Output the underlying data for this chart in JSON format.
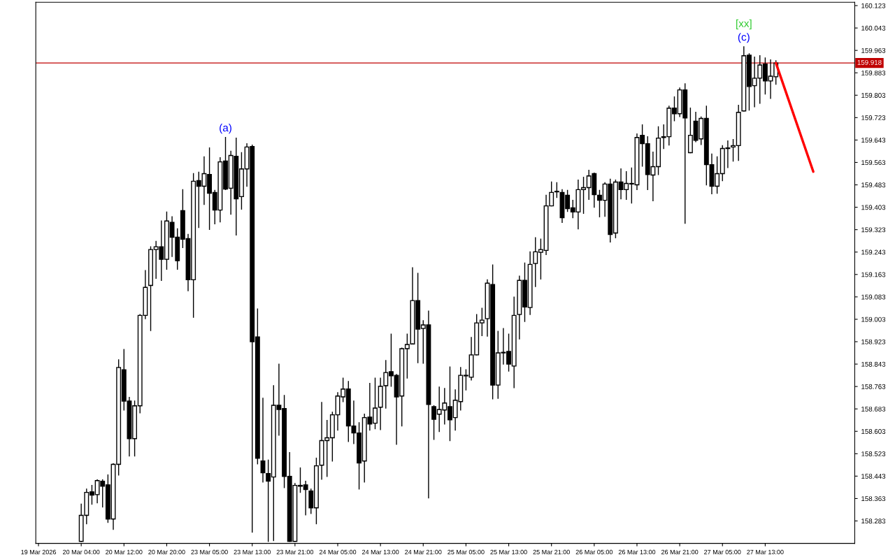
{
  "chart_data": {
    "type": "candlestick",
    "categories": [
      "19 Mar 2026",
      null,
      null,
      null,
      null,
      null,
      null,
      null,
      "20 Mar 04:00",
      null,
      null,
      null,
      null,
      null,
      null,
      null,
      "20 Mar 12:00",
      null,
      null,
      null,
      null,
      null,
      null,
      null,
      "20 Mar 20:00",
      null,
      null,
      null,
      null,
      null,
      null,
      null,
      "23 Mar 05:00",
      null,
      null,
      null,
      null,
      null,
      null,
      null,
      "23 Mar 13:00",
      null,
      null,
      null,
      null,
      null,
      null,
      null,
      "23 Mar 21:00",
      null,
      null,
      null,
      null,
      null,
      null,
      null,
      "24 Mar 05:00",
      null,
      null,
      null,
      null,
      null,
      null,
      null,
      "24 Mar 13:00",
      null,
      null,
      null,
      null,
      null,
      null,
      null,
      "24 Mar 21:00",
      null,
      null,
      null,
      null,
      null,
      null,
      null,
      "25 Mar 05:00",
      null,
      null,
      null,
      null,
      null,
      null,
      null,
      "25 Mar 13:00",
      null,
      null,
      null,
      null,
      null,
      null,
      null,
      "25 Mar 21:00",
      null,
      null,
      null,
      null,
      null,
      null,
      null,
      "26 Mar 05:00",
      null,
      null,
      null,
      null,
      null,
      null,
      null,
      "26 Mar 13:00",
      null,
      null,
      null,
      null,
      null,
      null,
      null,
      "26 Mar 21:00",
      null,
      null,
      null,
      null,
      null,
      null,
      null,
      "27 Mar 05:00",
      null,
      null,
      null,
      null,
      null,
      null,
      null,
      "27 Mar 13:00",
      null,
      null,
      null,
      null,
      null,
      null,
      null,
      null,
      null,
      null,
      null,
      null,
      null,
      null,
      null,
      null
    ],
    "ohlc": [
      null,
      null,
      null,
      null,
      null,
      null,
      null,
      null,
      [
        158.21,
        158.343,
        158.21,
        158.303
      ],
      [
        158.303,
        158.397,
        158.273,
        158.385
      ],
      [
        158.387,
        158.41,
        158.343,
        158.375
      ],
      [
        158.377,
        158.43,
        158.348,
        158.427
      ],
      [
        158.425,
        158.43,
        158.333,
        158.407
      ],
      [
        158.412,
        158.447,
        158.278,
        158.29
      ],
      [
        158.29,
        158.487,
        158.253,
        158.485
      ],
      [
        158.485,
        158.858,
        158.447,
        158.831
      ],
      [
        158.823,
        158.895,
        158.679,
        158.711
      ],
      [
        158.711,
        158.724,
        158.515,
        158.577
      ],
      [
        158.577,
        158.711,
        158.515,
        158.694
      ],
      [
        158.694,
        159.02,
        158.669,
        159.017
      ],
      [
        159.017,
        159.177,
        159.005,
        159.117
      ],
      [
        159.124,
        159.262,
        158.963,
        159.252
      ],
      [
        159.252,
        159.281,
        159.149,
        159.262
      ],
      [
        159.262,
        159.354,
        159.142,
        159.217
      ],
      [
        159.217,
        159.386,
        159.182,
        159.354
      ],
      [
        159.349,
        159.369,
        159.227,
        159.296
      ],
      [
        159.296,
        159.326,
        159.182,
        159.212
      ],
      [
        159.391,
        159.466,
        159.259,
        159.289
      ],
      [
        159.291,
        159.306,
        159.105,
        159.144
      ],
      [
        159.144,
        159.523,
        159.01,
        159.496
      ],
      [
        159.498,
        159.528,
        159.331,
        159.478
      ],
      [
        159.478,
        159.583,
        159.413,
        159.523
      ],
      [
        159.52,
        159.615,
        159.324,
        159.453
      ],
      [
        159.456,
        159.463,
        159.344,
        159.393
      ],
      [
        159.393,
        159.58,
        159.351,
        159.565
      ],
      [
        159.568,
        159.652,
        159.466,
        159.468
      ],
      [
        159.471,
        159.603,
        159.378,
        159.588
      ],
      [
        159.585,
        159.65,
        159.304,
        159.433
      ],
      [
        159.441,
        159.598,
        159.396,
        159.54
      ],
      [
        159.54,
        159.63,
        159.478,
        159.618
      ],
      [
        159.62,
        159.625,
        158.243,
        158.923
      ],
      [
        158.94,
        159.04,
        158.487,
        158.507
      ],
      [
        158.497,
        158.721,
        158.422,
        158.455
      ],
      [
        158.452,
        158.5,
        158.21,
        158.425
      ],
      [
        158.44,
        158.766,
        158.213,
        158.696
      ],
      [
        158.696,
        158.843,
        158.589,
        158.681
      ],
      [
        158.684,
        158.731,
        158.402,
        158.442
      ],
      [
        158.442,
        158.527,
        158.21,
        158.21
      ],
      [
        158.21,
        158.417,
        158.21,
        158.41
      ],
      [
        158.407,
        158.472,
        158.385,
        158.41
      ],
      [
        158.412,
        158.425,
        158.305,
        158.395
      ],
      [
        158.39,
        158.397,
        158.31,
        158.33
      ],
      [
        158.33,
        158.507,
        158.273,
        158.48
      ],
      [
        158.482,
        158.706,
        158.432,
        158.57
      ],
      [
        158.57,
        158.642,
        158.442,
        158.58
      ],
      [
        158.58,
        158.671,
        158.497,
        158.662
      ],
      [
        158.662,
        158.741,
        158.607,
        158.729
      ],
      [
        158.726,
        158.793,
        158.709,
        158.754
      ],
      [
        158.754,
        158.781,
        158.567,
        158.622
      ],
      [
        158.622,
        158.711,
        158.559,
        158.597
      ],
      [
        158.597,
        158.634,
        158.397,
        158.49
      ],
      [
        158.497,
        158.664,
        158.422,
        158.652
      ],
      [
        158.654,
        158.774,
        158.607,
        158.629
      ],
      [
        158.632,
        158.793,
        158.612,
        158.686
      ],
      [
        158.689,
        158.793,
        158.609,
        158.764
      ],
      [
        158.766,
        158.856,
        158.686,
        158.813
      ],
      [
        158.816,
        158.95,
        158.764,
        158.801
      ],
      [
        158.803,
        158.806,
        158.557,
        158.726
      ],
      [
        158.729,
        158.9,
        158.622,
        158.898
      ],
      [
        158.898,
        158.95,
        158.793,
        158.913
      ],
      [
        158.915,
        159.187,
        158.915,
        159.07
      ],
      [
        159.07,
        159.167,
        158.848,
        158.968
      ],
      [
        158.97,
        158.998,
        158.846,
        158.983
      ],
      [
        158.983,
        159.032,
        158.365,
        158.699
      ],
      [
        158.691,
        158.694,
        158.574,
        158.646
      ],
      [
        158.664,
        158.761,
        158.602,
        158.681
      ],
      [
        158.679,
        158.756,
        158.629,
        158.704
      ],
      [
        158.691,
        158.833,
        158.57,
        158.644
      ],
      [
        158.652,
        158.751,
        158.607,
        158.714
      ],
      [
        158.709,
        158.831,
        158.679,
        158.803
      ],
      [
        158.801,
        158.823,
        158.751,
        158.803
      ],
      [
        158.796,
        158.938,
        158.786,
        158.876
      ],
      [
        158.876,
        159.02,
        158.876,
        158.99
      ],
      [
        158.99,
        159.042,
        158.945,
        159.0
      ],
      [
        159.005,
        159.144,
        158.943,
        159.132
      ],
      [
        159.127,
        159.197,
        158.719,
        158.768
      ],
      [
        158.768,
        158.96,
        158.721,
        158.883
      ],
      [
        158.883,
        158.97,
        158.843,
        158.885
      ],
      [
        158.888,
        158.95,
        158.818,
        158.843
      ],
      [
        158.836,
        159.082,
        158.759,
        159.017
      ],
      [
        159.02,
        159.157,
        158.933,
        159.142
      ],
      [
        159.142,
        159.204,
        158.995,
        159.047
      ],
      [
        159.045,
        159.244,
        159.02,
        159.199
      ],
      [
        159.202,
        159.294,
        159.12,
        159.244
      ],
      [
        159.242,
        159.289,
        159.147,
        159.252
      ],
      [
        159.249,
        159.446,
        159.234,
        159.408
      ],
      [
        159.408,
        159.493,
        159.408,
        159.456
      ],
      [
        159.458,
        159.491,
        159.438,
        159.46
      ],
      [
        159.456,
        159.466,
        159.349,
        159.366
      ],
      [
        159.446,
        159.463,
        159.388,
        159.398
      ],
      [
        159.401,
        159.428,
        159.366,
        159.386
      ],
      [
        159.386,
        159.5,
        159.326,
        159.466
      ],
      [
        159.466,
        159.51,
        159.381,
        159.473
      ],
      [
        159.473,
        159.535,
        159.431,
        159.515
      ],
      [
        159.523,
        159.525,
        159.403,
        159.448
      ],
      [
        159.446,
        159.463,
        159.369,
        159.428
      ],
      [
        159.428,
        159.491,
        159.371,
        159.486
      ],
      [
        159.486,
        159.503,
        159.279,
        159.306
      ],
      [
        159.311,
        159.5,
        159.294,
        159.493
      ],
      [
        159.493,
        159.54,
        159.433,
        159.466
      ],
      [
        159.466,
        159.53,
        159.431,
        159.488
      ],
      [
        159.486,
        159.543,
        159.418,
        159.488
      ],
      [
        159.483,
        159.665,
        159.466,
        159.652
      ],
      [
        159.66,
        159.697,
        159.55,
        159.63
      ],
      [
        159.63,
        159.655,
        159.466,
        159.52
      ],
      [
        159.518,
        159.6,
        159.426,
        159.548
      ],
      [
        159.548,
        159.69,
        159.52,
        159.65
      ],
      [
        159.652,
        159.697,
        159.613,
        159.655
      ],
      [
        159.655,
        159.764,
        159.625,
        159.757
      ],
      [
        159.757,
        159.797,
        159.712,
        159.737
      ],
      [
        159.737,
        159.829,
        159.727,
        159.822
      ],
      [
        159.822,
        159.844,
        159.346,
        159.722
      ],
      [
        159.598,
        159.757,
        159.598,
        159.66
      ],
      [
        159.71,
        159.742,
        159.637,
        159.642
      ],
      [
        159.647,
        159.725,
        159.627,
        159.72
      ],
      [
        159.72,
        159.764,
        159.483,
        159.555
      ],
      [
        159.555,
        159.593,
        159.451,
        159.478
      ],
      [
        159.478,
        159.583,
        159.453,
        159.523
      ],
      [
        159.523,
        159.623,
        159.498,
        159.613
      ],
      [
        159.613,
        159.64,
        159.545,
        159.615
      ],
      [
        159.618,
        159.645,
        159.568,
        159.623
      ],
      [
        159.623,
        159.767,
        159.57,
        159.742
      ],
      [
        159.747,
        159.976,
        159.747,
        159.944
      ],
      [
        159.946,
        159.951,
        159.75,
        159.834
      ],
      [
        159.837,
        159.939,
        159.762,
        159.864
      ],
      [
        159.864,
        159.944,
        159.774,
        159.911
      ],
      [
        159.914,
        159.936,
        159.807,
        159.854
      ],
      [
        159.854,
        159.929,
        159.792,
        159.871
      ],
      [
        159.869,
        159.926,
        159.842,
        159.918
      ],
      null,
      null,
      null,
      null,
      null,
      null,
      null,
      null,
      null,
      null,
      null,
      null,
      null,
      null
    ],
    "series": [
      {
        "type": "line",
        "color": "#ff0000",
        "values": [
          null,
          null,
          null,
          null,
          null,
          null,
          null,
          null,
          null,
          null,
          null,
          null,
          null,
          null,
          null,
          null,
          null,
          null,
          null,
          null,
          null,
          null,
          null,
          null,
          null,
          null,
          null,
          null,
          null,
          null,
          null,
          null,
          null,
          null,
          null,
          null,
          null,
          null,
          null,
          null,
          null,
          null,
          null,
          null,
          null,
          null,
          null,
          null,
          null,
          null,
          null,
          null,
          null,
          null,
          null,
          null,
          null,
          null,
          null,
          null,
          null,
          null,
          null,
          null,
          null,
          null,
          null,
          null,
          null,
          null,
          null,
          null,
          null,
          null,
          null,
          null,
          null,
          null,
          null,
          null,
          null,
          null,
          null,
          null,
          null,
          null,
          null,
          null,
          null,
          null,
          null,
          null,
          null,
          null,
          null,
          null,
          null,
          null,
          null,
          null,
          null,
          null,
          null,
          null,
          null,
          null,
          null,
          null,
          null,
          null,
          null,
          null,
          null,
          null,
          null,
          null,
          null,
          null,
          null,
          null,
          null,
          null,
          null,
          null,
          null,
          null,
          null,
          null,
          null,
          null,
          null,
          null,
          null,
          null,
          null,
          null,
          null,
          null,
          159.918,
          null,
          null,
          null,
          null,
          null,
          null,
          159.53,
          null,
          null,
          null,
          null,
          null,
          null,
          null
        ]
      }
    ],
    "ylim": [
      158.203,
      160.135
    ],
    "yticks": [
      158.283,
      158.363,
      158.443,
      158.523,
      158.603,
      158.683,
      158.763,
      158.843,
      158.923,
      159.003,
      159.083,
      159.163,
      159.243,
      159.323,
      159.403,
      159.483,
      159.563,
      159.643,
      159.723,
      159.803,
      159.883,
      159.963,
      160.043,
      160.123
    ],
    "ref_lines": [
      {
        "axis": "y",
        "value": 159.918,
        "label": "159.918",
        "color": "#c00000"
      }
    ],
    "annotations": [
      {
        "text": "(a)",
        "y": 159.652
      },
      {
        "text": "(c)",
        "y": 159.976
      },
      {
        "text": "[xx]",
        "y": 159.976
      }
    ],
    "grid": false,
    "legend": false
  }
}
